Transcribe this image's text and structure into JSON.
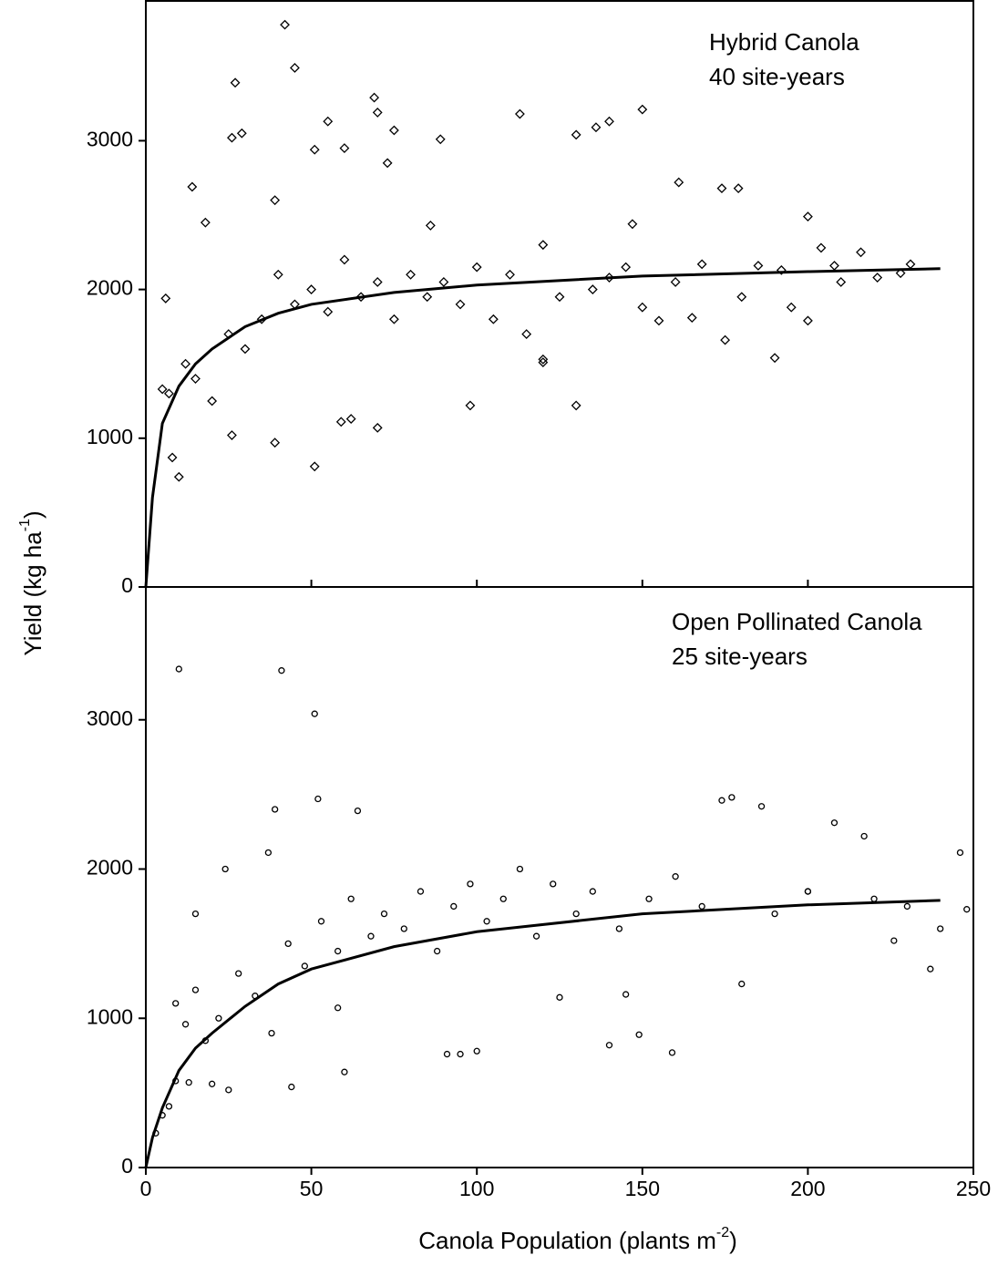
{
  "chart_data": [
    {
      "type": "scatter",
      "annotations": [
        "Hybrid Canola",
        "40 site-years"
      ],
      "y_label": {
        "text": "Yield (kg ha",
        "sup": "-1",
        "after": ")"
      },
      "xlim": [
        0,
        250
      ],
      "xticks": [
        0,
        50,
        100,
        150,
        200,
        250
      ],
      "xtick_labels": false,
      "ylim": [
        0,
        3940
      ],
      "yticks": [
        0,
        1000,
        2000,
        3000
      ],
      "series": [
        {
          "mode": "markers",
          "marker": "diamond",
          "color": "#000000",
          "x": [
            42,
            45,
            27,
            69,
            70,
            55,
            150,
            113,
            140,
            136,
            130,
            89,
            29,
            26,
            51,
            60,
            75,
            14,
            18,
            39,
            73,
            86,
            161,
            174,
            179,
            200,
            204,
            216,
            231,
            228,
            221,
            208,
            192,
            190,
            195,
            200,
            185,
            175,
            168,
            165,
            155,
            150,
            147,
            140,
            130,
            120,
            120,
            98,
            51,
            39,
            70,
            62,
            59,
            26,
            6,
            10,
            8,
            5,
            7,
            12,
            15,
            20,
            25,
            30,
            35,
            40,
            45,
            50,
            55,
            60,
            65,
            70,
            75,
            80,
            85,
            90,
            95,
            100,
            105,
            110,
            115,
            120,
            125,
            135,
            145,
            160,
            180,
            210
          ],
          "values": [
            3780,
            3490,
            3390,
            3290,
            3190,
            3130,
            3210,
            3180,
            3130,
            3090,
            3040,
            3010,
            3050,
            3020,
            2940,
            2950,
            3070,
            2690,
            2450,
            2600,
            2850,
            2430,
            2720,
            2680,
            2680,
            2490,
            2280,
            2250,
            2170,
            2110,
            2080,
            2160,
            2130,
            1540,
            1880,
            1790,
            2160,
            1660,
            2170,
            1810,
            1790,
            1880,
            2440,
            2080,
            1220,
            1510,
            1530,
            1220,
            810,
            970,
            1070,
            1130,
            1110,
            1020,
            1940,
            740,
            870,
            1330,
            1300,
            1500,
            1400,
            1250,
            1700,
            1600,
            1800,
            2100,
            1900,
            2000,
            1850,
            2200,
            1950,
            2050,
            1800,
            2100,
            1950,
            2050,
            1900,
            2150,
            1800,
            2100,
            1700,
            2300,
            1950,
            2000,
            2150,
            2050,
            1950,
            2050
          ]
        },
        {
          "mode": "line",
          "color": "#000000",
          "x": [
            0,
            2,
            5,
            10,
            15,
            20,
            30,
            40,
            50,
            75,
            100,
            150,
            200,
            240
          ],
          "values": [
            0,
            600,
            1100,
            1350,
            1500,
            1600,
            1750,
            1840,
            1900,
            1980,
            2030,
            2090,
            2120,
            2140
          ]
        }
      ]
    },
    {
      "type": "scatter",
      "annotations": [
        "Open Pollinated Canola",
        "25 site-years"
      ],
      "x_label": {
        "text": "Canola Population (plants m",
        "sup": "-2",
        "after": ")"
      },
      "xlim": [
        0,
        250
      ],
      "xticks": [
        0,
        50,
        100,
        150,
        200,
        250
      ],
      "xtick_labels": true,
      "ylim": [
        0,
        3890
      ],
      "yticks": [
        0,
        1000,
        2000,
        3000
      ],
      "series": [
        {
          "mode": "markers",
          "marker": "circle",
          "color": "#000000",
          "x": [
            10,
            41,
            51,
            52,
            39,
            64,
            174,
            177,
            186,
            208,
            217,
            246,
            248,
            240,
            237,
            226,
            200,
            180,
            159,
            149,
            140,
            145,
            125,
            100,
            91,
            95,
            58,
            60,
            44,
            25,
            20,
            3,
            5,
            7,
            9,
            12,
            15,
            15,
            24,
            37,
            9,
            13,
            18,
            22,
            28,
            33,
            38,
            43,
            48,
            53,
            58,
            62,
            68,
            72,
            78,
            83,
            88,
            93,
            98,
            103,
            108,
            113,
            118,
            123,
            130,
            135,
            143,
            152,
            160,
            168,
            190,
            200,
            220,
            230
          ],
          "values": [
            3340,
            3330,
            3040,
            2470,
            2400,
            2390,
            2460,
            2480,
            2420,
            2310,
            2220,
            2110,
            1730,
            1600,
            1330,
            1520,
            1850,
            1230,
            770,
            890,
            820,
            1160,
            1140,
            780,
            760,
            760,
            1070,
            640,
            540,
            520,
            560,
            230,
            350,
            410,
            1100,
            960,
            1190,
            1700,
            2000,
            2110,
            580,
            570,
            850,
            1000,
            1300,
            1150,
            900,
            1500,
            1350,
            1650,
            1450,
            1800,
            1550,
            1700,
            1600,
            1850,
            1450,
            1750,
            1900,
            1650,
            1800,
            2000,
            1550,
            1900,
            1700,
            1850,
            1600,
            1800,
            1950,
            1750,
            1700,
            1850,
            1800,
            1750
          ]
        },
        {
          "mode": "line",
          "color": "#000000",
          "x": [
            0,
            2,
            5,
            10,
            15,
            20,
            30,
            40,
            50,
            75,
            100,
            150,
            200,
            240
          ],
          "values": [
            0,
            200,
            400,
            650,
            800,
            900,
            1080,
            1230,
            1330,
            1480,
            1580,
            1700,
            1760,
            1790
          ]
        }
      ]
    }
  ]
}
